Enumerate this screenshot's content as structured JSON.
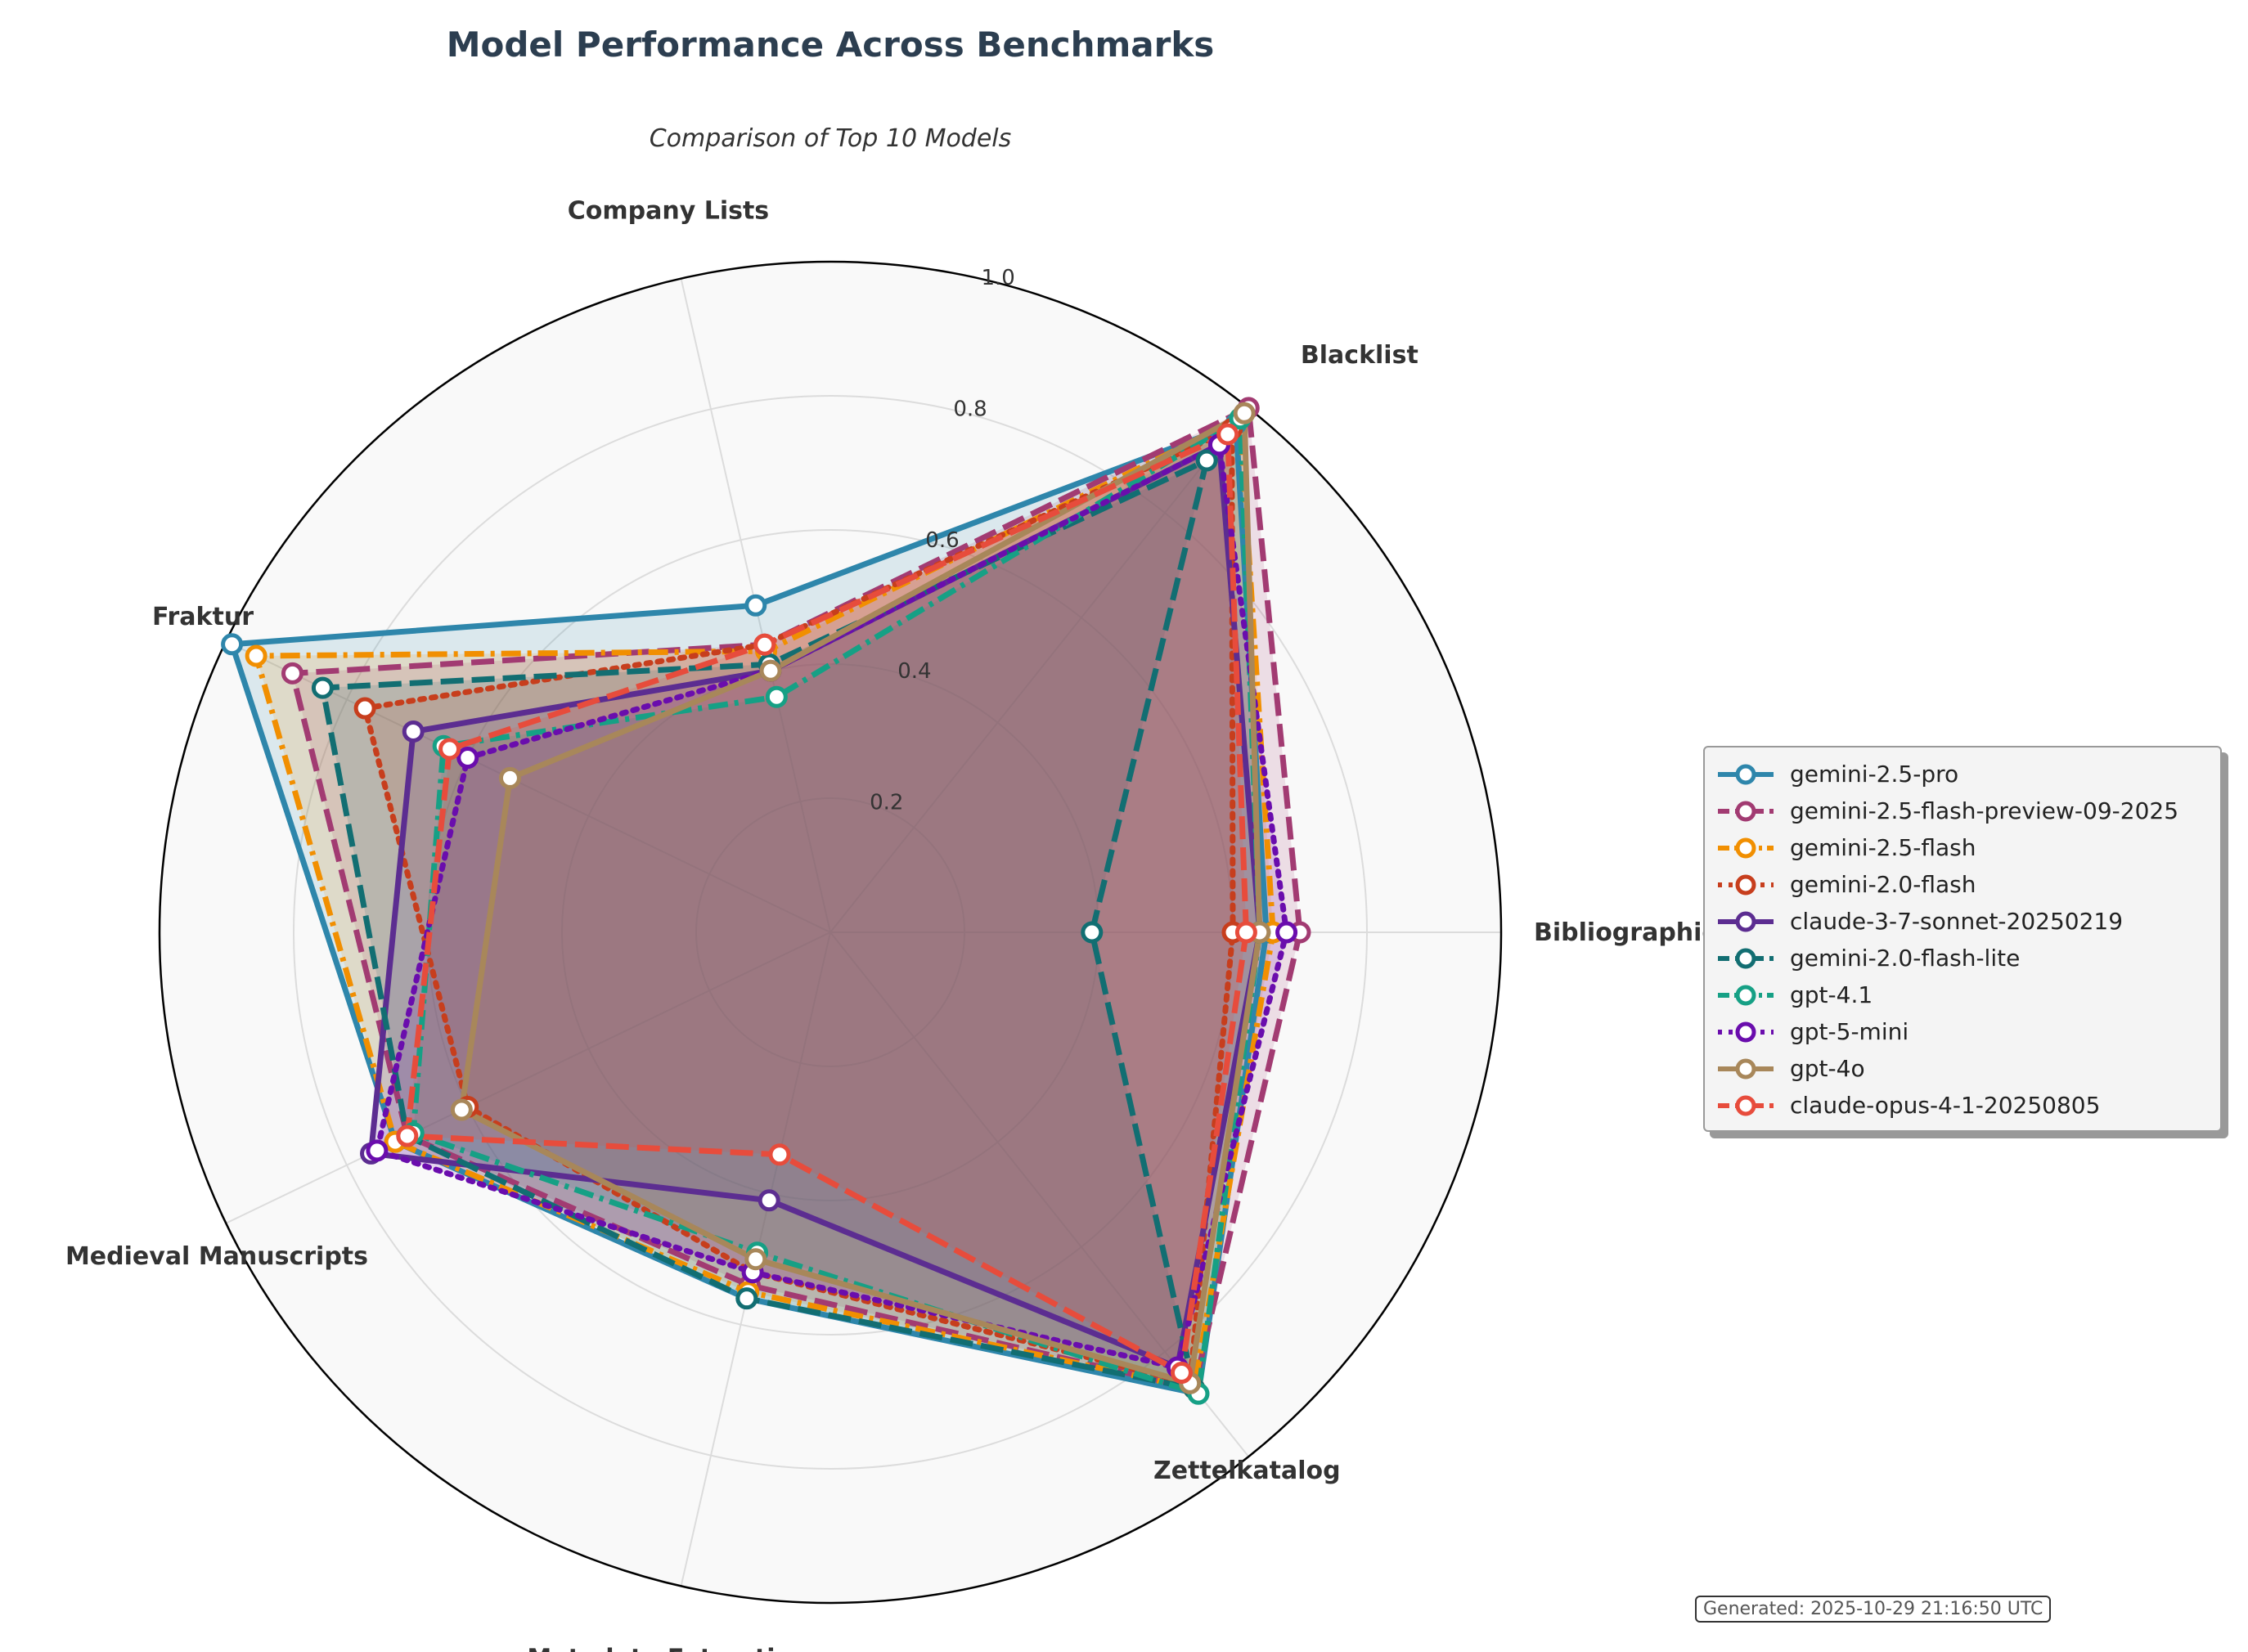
{
  "title": "Model Performance Across Benchmarks",
  "subtitle": "Comparison of Top 10 Models",
  "footer": "Generated: 2025-10-29 21:16:50 UTC",
  "chart_data": {
    "type": "radar",
    "axes": [
      "Bibliographic Data",
      "Blacklist",
      "Company Lists",
      "Fraktur",
      "Medieval Manuscripts",
      "Metadata Extraction",
      "Zettelkatalog"
    ],
    "rlim": [
      0,
      1.0
    ],
    "rticks": [
      "0.2",
      "0.4",
      "0.6",
      "0.8",
      "1.0"
    ],
    "grid": true,
    "legend_position": "right",
    "series": [
      {
        "name": "gemini-2.5-pro",
        "color": "#2e86ab",
        "dash": "solid",
        "values": [
          0.65,
          0.97,
          0.5,
          0.99,
          0.72,
          0.56,
          0.88
        ]
      },
      {
        "name": "gemini-2.5-flash-preview-09-2025",
        "color": "#a23b72",
        "dash": "dashed",
        "values": [
          0.7,
          1.0,
          0.44,
          0.89,
          0.7,
          0.54,
          0.87
        ]
      },
      {
        "name": "gemini-2.5-flash",
        "color": "#f18f01",
        "dash": "dashdot",
        "values": [
          0.66,
          0.98,
          0.43,
          0.95,
          0.72,
          0.55,
          0.87
        ]
      },
      {
        "name": "gemini-2.0-flash",
        "color": "#c73e1d",
        "dash": "dotted",
        "values": [
          0.6,
          0.96,
          0.44,
          0.77,
          0.6,
          0.52,
          0.86
        ]
      },
      {
        "name": "claude-3-7-sonnet-20250219",
        "color": "#5c2d91",
        "dash": "solid",
        "values": [
          0.64,
          0.93,
          0.4,
          0.69,
          0.76,
          0.41,
          0.83
        ]
      },
      {
        "name": "gemini-2.0-flash-lite",
        "color": "#126e72",
        "dash": "dashed",
        "values": [
          0.39,
          0.9,
          0.41,
          0.84,
          0.7,
          0.56,
          0.87
        ]
      },
      {
        "name": "gpt-4.1",
        "color": "#16a085",
        "dash": "dashdot",
        "values": [
          0.64,
          0.98,
          0.36,
          0.64,
          0.69,
          0.49,
          0.88
        ]
      },
      {
        "name": "gpt-5-mini",
        "color": "#6a0dad",
        "dash": "dotted",
        "values": [
          0.68,
          0.93,
          0.4,
          0.6,
          0.75,
          0.52,
          0.83
        ]
      },
      {
        "name": "gpt-4o",
        "color": "#a8875a",
        "dash": "solid",
        "values": [
          0.64,
          0.99,
          0.4,
          0.53,
          0.61,
          0.5,
          0.86
        ]
      },
      {
        "name": "claude-opus-4-1-20250805",
        "color": "#e74c3c",
        "dash": "dashed",
        "values": [
          0.62,
          0.95,
          0.44,
          0.63,
          0.7,
          0.34,
          0.84
        ]
      }
    ]
  }
}
